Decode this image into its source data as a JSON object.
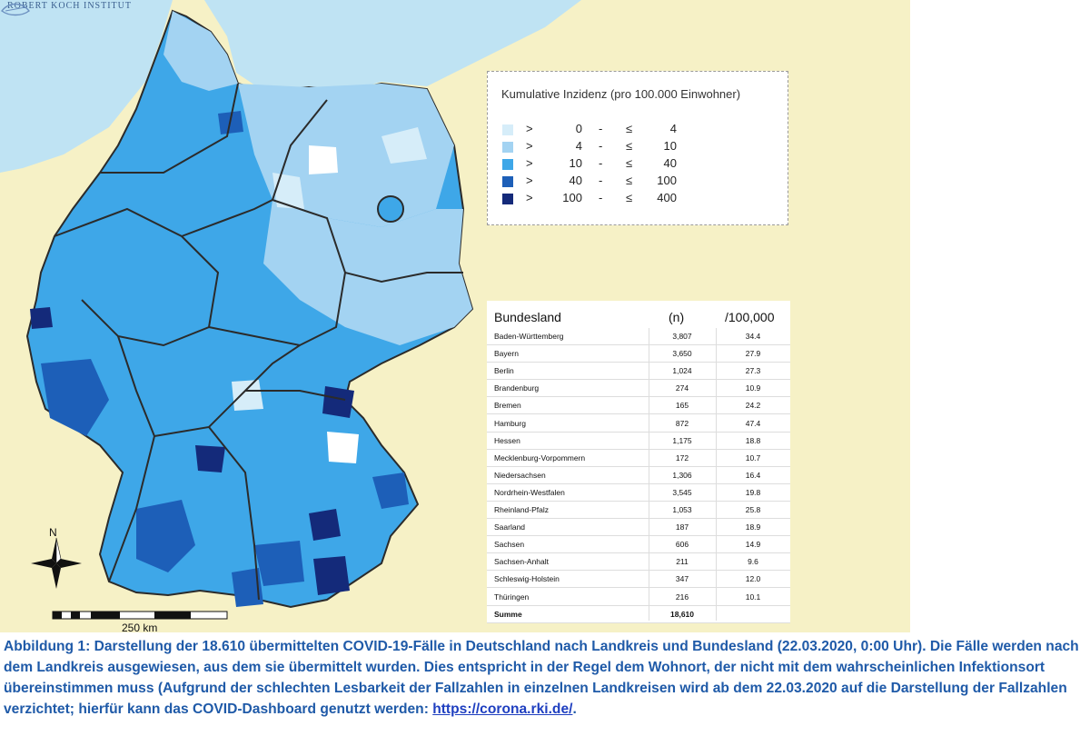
{
  "source": {
    "logo_text": "ROBERT KOCH INSTITUT"
  },
  "legend": {
    "title": "Kumulative Inzidenz (pro 100.000 Einwohner)",
    "classes": [
      {
        "gt": ">",
        "low": "0",
        "dash": "-",
        "le": "≤",
        "high": "4",
        "color": "#d6edf9"
      },
      {
        "gt": ">",
        "low": "4",
        "dash": "-",
        "le": "≤",
        "high": "10",
        "color": "#a3d3f2"
      },
      {
        "gt": ">",
        "low": "10",
        "dash": "-",
        "le": "≤",
        "high": "40",
        "color": "#3ea7e8"
      },
      {
        "gt": ">",
        "low": "40",
        "dash": "-",
        "le": "≤",
        "high": "100",
        "color": "#1d5fb8"
      },
      {
        "gt": ">",
        "low": "100",
        "dash": "-",
        "le": "≤",
        "high": "400",
        "color": "#142a7a"
      }
    ]
  },
  "table": {
    "headers": [
      "Bundesland",
      "(n)",
      "/100,000"
    ],
    "rows": [
      [
        "Baden-Württemberg",
        "3,807",
        "34.4"
      ],
      [
        "Bayern",
        "3,650",
        "27.9"
      ],
      [
        "Berlin",
        "1,024",
        "27.3"
      ],
      [
        "Brandenburg",
        "274",
        "10.9"
      ],
      [
        "Bremen",
        "165",
        "24.2"
      ],
      [
        "Hamburg",
        "872",
        "47.4"
      ],
      [
        "Hessen",
        "1,175",
        "18.8"
      ],
      [
        "Mecklenburg-Vorpommern",
        "172",
        "10.7"
      ],
      [
        "Niedersachsen",
        "1,306",
        "16.4"
      ],
      [
        "Nordrhein-Westfalen",
        "3,545",
        "19.8"
      ],
      [
        "Rheinland-Pfalz",
        "1,053",
        "25.8"
      ],
      [
        "Saarland",
        "187",
        "18.9"
      ],
      [
        "Sachsen",
        "606",
        "14.9"
      ],
      [
        "Sachsen-Anhalt",
        "211",
        "9.6"
      ],
      [
        "Schleswig-Holstein",
        "347",
        "12.0"
      ],
      [
        "Thüringen",
        "216",
        "10.1"
      ]
    ],
    "total": [
      "Summe",
      "18,610",
      ""
    ]
  },
  "map": {
    "north_label": "N",
    "scale_label": "250 km"
  },
  "caption": {
    "text": "Abbildung 1: Darstellung der 18.610 übermittelten COVID-19-Fälle in Deutschland nach Landkreis und Bundesland (22.03.2020, 0:00 Uhr). Die Fälle werden nach dem Landkreis ausgewiesen, aus dem sie übermittelt wurden. Dies entspricht in der Regel dem Wohnort, der nicht mit dem wahrscheinlichen Infektionsort übereinstimmen muss (Aufgrund der schlechten Lesbarkeit der Fallzahlen in einzelnen Landkreisen wird ab dem 22.03.2020 auf die Darstellung der Fallzahlen verzichtet; hierfür kann das COVID-Dashboard genutzt werden: ",
    "link": "https://corona.rki.de/",
    "end": "."
  },
  "colors": {
    "sea": "#bfe3f3",
    "land": "#f6f1c6",
    "border": "#2b2b2b",
    "caption": "#1f5aa8"
  }
}
